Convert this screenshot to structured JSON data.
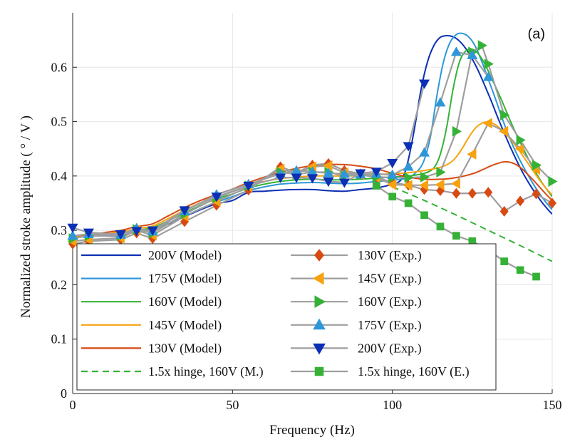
{
  "chart_data": {
    "type": "line",
    "panel_label": "(a)",
    "xlabel": "Frequency (Hz)",
    "ylabel": "Normalized stroke amplitude ( ° / V )",
    "xlim": [
      0,
      150
    ],
    "ylim": [
      0,
      0.7
    ],
    "xticks": [
      0,
      50,
      100,
      150
    ],
    "xtick_labels": [
      "0",
      "50",
      "100",
      "150"
    ],
    "yticks": [
      0,
      0.1,
      0.2,
      0.3,
      0.4,
      0.5,
      0.6
    ],
    "ytick_labels": [
      "0",
      "0.1",
      "0.2",
      "0.3",
      "0.4",
      "0.5",
      "0.6"
    ],
    "grid": true,
    "legend_placement": "bottom-left",
    "series": [
      {
        "name": "200V (Model)",
        "kind": "model",
        "color": "#0b2fb5",
        "dash": false,
        "x": [
          0,
          5,
          10,
          15,
          20,
          25,
          30,
          35,
          40,
          45,
          50,
          55,
          60,
          65,
          70,
          75,
          80,
          85,
          90,
          95,
          100,
          103,
          105,
          107,
          109,
          111,
          113,
          115,
          117,
          119,
          121,
          123,
          125,
          127,
          129,
          131,
          133,
          135,
          137,
          139,
          141,
          143,
          145,
          147,
          149,
          150
        ],
        "y": [
          0.29,
          0.29,
          0.29,
          0.29,
          0.298,
          0.302,
          0.312,
          0.325,
          0.338,
          0.349,
          0.355,
          0.37,
          0.372,
          0.374,
          0.375,
          0.375,
          0.373,
          0.372,
          0.375,
          0.378,
          0.385,
          0.395,
          0.43,
          0.49,
          0.56,
          0.61,
          0.64,
          0.655,
          0.658,
          0.656,
          0.648,
          0.634,
          0.615,
          0.592,
          0.565,
          0.537,
          0.507,
          0.479,
          0.452,
          0.427,
          0.404,
          0.384,
          0.366,
          0.35,
          0.336,
          0.33
        ]
      },
      {
        "name": "175V (Model)",
        "kind": "model",
        "color": "#2e97d8",
        "dash": false,
        "x": [
          0,
          5,
          10,
          15,
          20,
          25,
          30,
          35,
          40,
          45,
          50,
          55,
          60,
          65,
          70,
          75,
          80,
          85,
          90,
          95,
          100,
          105,
          108,
          110,
          112,
          114,
          116,
          118,
          120,
          122,
          124,
          126,
          128,
          130,
          132,
          134,
          136,
          138,
          140,
          142,
          144,
          146,
          148,
          150
        ],
        "y": [
          0.29,
          0.29,
          0.292,
          0.293,
          0.298,
          0.302,
          0.313,
          0.326,
          0.34,
          0.352,
          0.362,
          0.373,
          0.38,
          0.385,
          0.387,
          0.388,
          0.387,
          0.386,
          0.387,
          0.39,
          0.392,
          0.397,
          0.41,
          0.43,
          0.475,
          0.55,
          0.61,
          0.645,
          0.66,
          0.662,
          0.655,
          0.638,
          0.61,
          0.578,
          0.546,
          0.512,
          0.48,
          0.452,
          0.428,
          0.406,
          0.386,
          0.368,
          0.352,
          0.338
        ]
      },
      {
        "name": "160V (Model)",
        "kind": "model",
        "color": "#35b236",
        "dash": false,
        "x": [
          0,
          5,
          10,
          15,
          20,
          25,
          30,
          35,
          40,
          45,
          50,
          55,
          60,
          65,
          70,
          75,
          80,
          85,
          90,
          95,
          100,
          105,
          110,
          113,
          115,
          117,
          119,
          121,
          123,
          125,
          127,
          129,
          131,
          133,
          135,
          137,
          139,
          141,
          143,
          145,
          147,
          150
        ],
        "y": [
          0.29,
          0.29,
          0.292,
          0.295,
          0.3,
          0.305,
          0.318,
          0.332,
          0.346,
          0.358,
          0.367,
          0.378,
          0.385,
          0.39,
          0.393,
          0.394,
          0.393,
          0.393,
          0.394,
          0.396,
          0.398,
          0.4,
          0.405,
          0.415,
          0.44,
          0.49,
          0.56,
          0.61,
          0.63,
          0.633,
          0.624,
          0.605,
          0.58,
          0.555,
          0.528,
          0.5,
          0.474,
          0.45,
          0.426,
          0.405,
          0.386,
          0.362
        ]
      },
      {
        "name": "145V (Model)",
        "kind": "model",
        "color": "#f7a210",
        "dash": false,
        "x": [
          0,
          5,
          10,
          15,
          20,
          25,
          30,
          35,
          40,
          45,
          50,
          55,
          60,
          65,
          70,
          75,
          80,
          85,
          90,
          95,
          100,
          105,
          110,
          115,
          118,
          120,
          122,
          124,
          126,
          128,
          130,
          132,
          134,
          136,
          138,
          140,
          142,
          144,
          146,
          148,
          150
        ],
        "y": [
          0.288,
          0.29,
          0.293,
          0.297,
          0.303,
          0.308,
          0.322,
          0.337,
          0.351,
          0.362,
          0.371,
          0.382,
          0.39,
          0.395,
          0.398,
          0.4,
          0.4,
          0.4,
          0.401,
          0.403,
          0.404,
          0.406,
          0.41,
          0.416,
          0.424,
          0.435,
          0.452,
          0.472,
          0.488,
          0.497,
          0.499,
          0.495,
          0.486,
          0.474,
          0.46,
          0.444,
          0.427,
          0.41,
          0.393,
          0.378,
          0.365
        ]
      },
      {
        "name": "130V (Model)",
        "kind": "model",
        "color": "#d74a12",
        "dash": false,
        "x": [
          0,
          5,
          10,
          15,
          20,
          25,
          30,
          35,
          40,
          45,
          50,
          55,
          60,
          65,
          70,
          75,
          80,
          85,
          90,
          95,
          100,
          105,
          110,
          115,
          120,
          125,
          128,
          131,
          134,
          136,
          138,
          140,
          142,
          144,
          146,
          148,
          150
        ],
        "y": [
          0.29,
          0.292,
          0.296,
          0.3,
          0.307,
          0.312,
          0.327,
          0.342,
          0.355,
          0.366,
          0.376,
          0.388,
          0.398,
          0.407,
          0.414,
          0.419,
          0.421,
          0.421,
          0.418,
          0.413,
          0.405,
          0.398,
          0.394,
          0.394,
          0.397,
          0.404,
          0.411,
          0.419,
          0.425,
          0.426,
          0.423,
          0.416,
          0.405,
          0.393,
          0.38,
          0.367,
          0.355
        ]
      },
      {
        "name": "1.5x hinge, 160V (M.)",
        "kind": "model",
        "color": "#35b236",
        "dash": true,
        "x": [
          100,
          110,
          120,
          130,
          140,
          150
        ],
        "y": [
          0.38,
          0.355,
          0.328,
          0.3,
          0.272,
          0.243
        ]
      },
      {
        "name": "130V (Exp.)",
        "kind": "exp",
        "color": "#d74a12",
        "marker": "diamond",
        "x": [
          0,
          5,
          15,
          20,
          25,
          35,
          45,
          55,
          65,
          70,
          75,
          80,
          85,
          90,
          95,
          100,
          105,
          110,
          115,
          120,
          125,
          130,
          135,
          140,
          145,
          150
        ],
        "y": [
          0.275,
          0.28,
          0.283,
          0.295,
          0.285,
          0.316,
          0.346,
          0.374,
          0.417,
          0.406,
          0.42,
          0.423,
          0.41,
          0.404,
          0.398,
          0.388,
          0.383,
          0.375,
          0.373,
          0.368,
          0.368,
          0.37,
          0.335,
          0.354,
          0.367,
          0.35
        ]
      },
      {
        "name": "145V (Exp.)",
        "kind": "exp",
        "color": "#f7a210",
        "marker": "left-triangle",
        "x": [
          0,
          5,
          15,
          20,
          25,
          35,
          45,
          55,
          65,
          70,
          75,
          80,
          85,
          90,
          95,
          100,
          105,
          110,
          115,
          120,
          125,
          130,
          135,
          140,
          145
        ],
        "y": [
          0.28,
          0.283,
          0.286,
          0.3,
          0.291,
          0.326,
          0.353,
          0.38,
          0.413,
          0.404,
          0.417,
          0.419,
          0.406,
          0.403,
          0.397,
          0.384,
          0.383,
          0.383,
          0.384,
          0.386,
          0.44,
          0.497,
          0.482,
          0.45,
          0.412
        ]
      },
      {
        "name": "160V (Exp.)",
        "kind": "exp",
        "color": "#35b236",
        "marker": "right-triangle",
        "x": [
          0,
          5,
          15,
          20,
          25,
          35,
          45,
          55,
          65,
          70,
          75,
          80,
          85,
          90,
          95,
          100,
          105,
          110,
          115,
          120,
          125,
          128,
          130,
          135,
          140,
          145,
          150
        ],
        "y": [
          0.285,
          0.29,
          0.29,
          0.302,
          0.295,
          0.33,
          0.36,
          0.382,
          0.407,
          0.403,
          0.407,
          0.407,
          0.4,
          0.402,
          0.398,
          0.397,
          0.397,
          0.398,
          0.407,
          0.482,
          0.628,
          0.64,
          0.606,
          0.512,
          0.466,
          0.42,
          0.39
        ]
      },
      {
        "name": "175V (Exp.)",
        "kind": "exp",
        "color": "#2e97d8",
        "marker": "up-triangle",
        "x": [
          0,
          5,
          15,
          20,
          25,
          35,
          45,
          55,
          65,
          70,
          75,
          80,
          85,
          90,
          95,
          100,
          105,
          110,
          115,
          120,
          125,
          130
        ],
        "y": [
          0.29,
          0.293,
          0.292,
          0.304,
          0.298,
          0.335,
          0.366,
          0.385,
          0.404,
          0.41,
          0.408,
          0.405,
          0.404,
          0.403,
          0.404,
          0.402,
          0.417,
          0.443,
          0.535,
          0.628,
          0.622,
          0.582
        ]
      },
      {
        "name": "200V (Exp.)",
        "kind": "exp",
        "color": "#0b2fb5",
        "marker": "down-triangle",
        "x": [
          0,
          5,
          15,
          20,
          25,
          35,
          45,
          55,
          65,
          70,
          75,
          80,
          85,
          90,
          95,
          100,
          105,
          110
        ],
        "y": [
          0.305,
          0.296,
          0.293,
          0.299,
          0.3,
          0.337,
          0.362,
          0.382,
          0.397,
          0.397,
          0.396,
          0.39,
          0.388,
          0.405,
          0.408,
          0.424,
          0.455,
          0.57
        ]
      },
      {
        "name": "1.5x hinge, 160V (E.)",
        "kind": "exp",
        "color": "#35b236",
        "marker": "square",
        "x": [
          95,
          100,
          105,
          110,
          115,
          120,
          125,
          130,
          135,
          140,
          145
        ],
        "y": [
          0.382,
          0.362,
          0.35,
          0.328,
          0.307,
          0.29,
          0.28,
          0.264,
          0.243,
          0.227,
          0.215
        ]
      }
    ]
  }
}
